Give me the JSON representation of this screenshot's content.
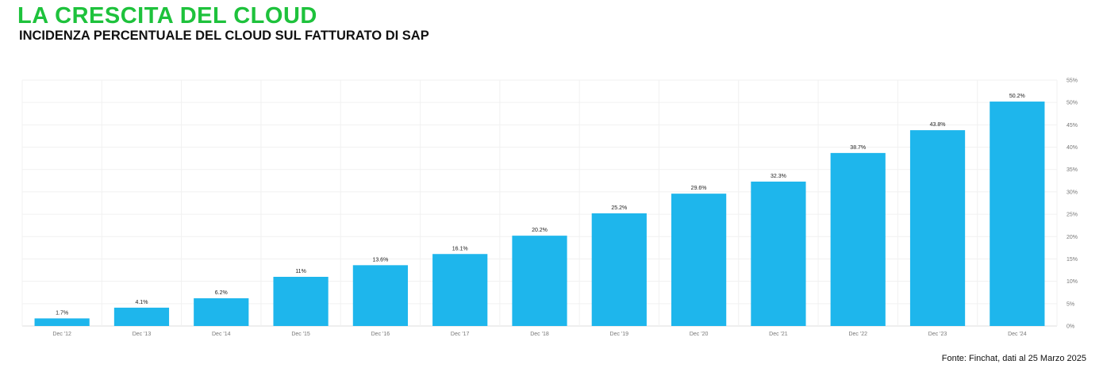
{
  "header": {
    "title": "LA CRESCITA DEL CLOUD",
    "subtitle": "INCIDENZA PERCENTUALE DEL CLOUD SUL FATTURATO DI SAP"
  },
  "footer": {
    "source": "Fonte: Finchat, dati al 25 Marzo 2025"
  },
  "colors": {
    "title": "#1ec23c",
    "bar": "#1eb6ec",
    "grid": "#f1f1f1"
  },
  "chart_data": {
    "type": "bar",
    "title": "LA CRESCITA DEL CLOUD",
    "subtitle": "INCIDENZA PERCENTUALE DEL CLOUD SUL FATTURATO DI SAP",
    "categories": [
      "Dec '12",
      "Dec '13",
      "Dec '14",
      "Dec '15",
      "Dec '16",
      "Dec '17",
      "Dec '18",
      "Dec '19",
      "Dec '20",
      "Dec '21",
      "Dec '22",
      "Dec '23",
      "Dec '24"
    ],
    "values": [
      1.7,
      4.1,
      6.2,
      11,
      13.6,
      16.1,
      20.2,
      25.2,
      29.6,
      32.3,
      38.7,
      43.8,
      50.2
    ],
    "value_labels": [
      "1.7%",
      "4.1%",
      "6.2%",
      "11%",
      "13.6%",
      "16.1%",
      "20.2%",
      "25.2%",
      "29.6%",
      "32.3%",
      "38.7%",
      "43.8%",
      "50.2%"
    ],
    "xlabel": "",
    "ylabel": "",
    "ylim": [
      0,
      55
    ],
    "y_ticks": [
      0,
      5,
      10,
      15,
      20,
      25,
      30,
      35,
      40,
      45,
      50,
      55
    ],
    "y_tick_labels": [
      "0%",
      "5%",
      "10%",
      "15%",
      "20%",
      "25%",
      "30%",
      "35%",
      "40%",
      "45%",
      "50%",
      "55%"
    ],
    "y_axis_side": "right",
    "grid": true,
    "legend": "none"
  }
}
